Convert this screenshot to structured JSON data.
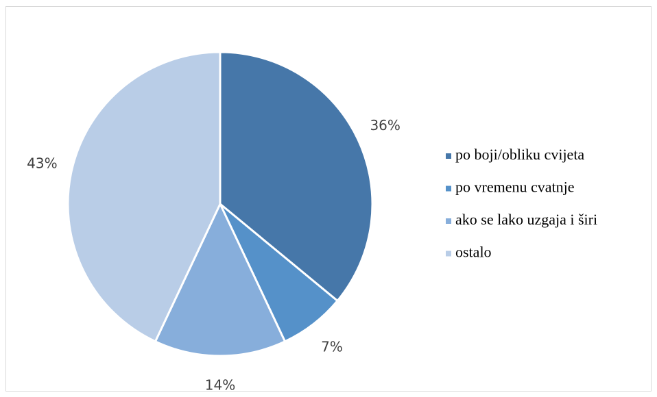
{
  "chart_data": {
    "type": "pie",
    "categories": [
      "po boji/obliku cvijeta",
      "po vremenu cvatnje",
      "ako se lako uzgaja i širi",
      "ostalo"
    ],
    "values": [
      36,
      7,
      14,
      43
    ],
    "value_labels": [
      "36%",
      "7%",
      "14%",
      "43%"
    ],
    "colors": [
      "#4677a9",
      "#5591c9",
      "#87aedb",
      "#b9cde7"
    ],
    "legend": "right"
  }
}
